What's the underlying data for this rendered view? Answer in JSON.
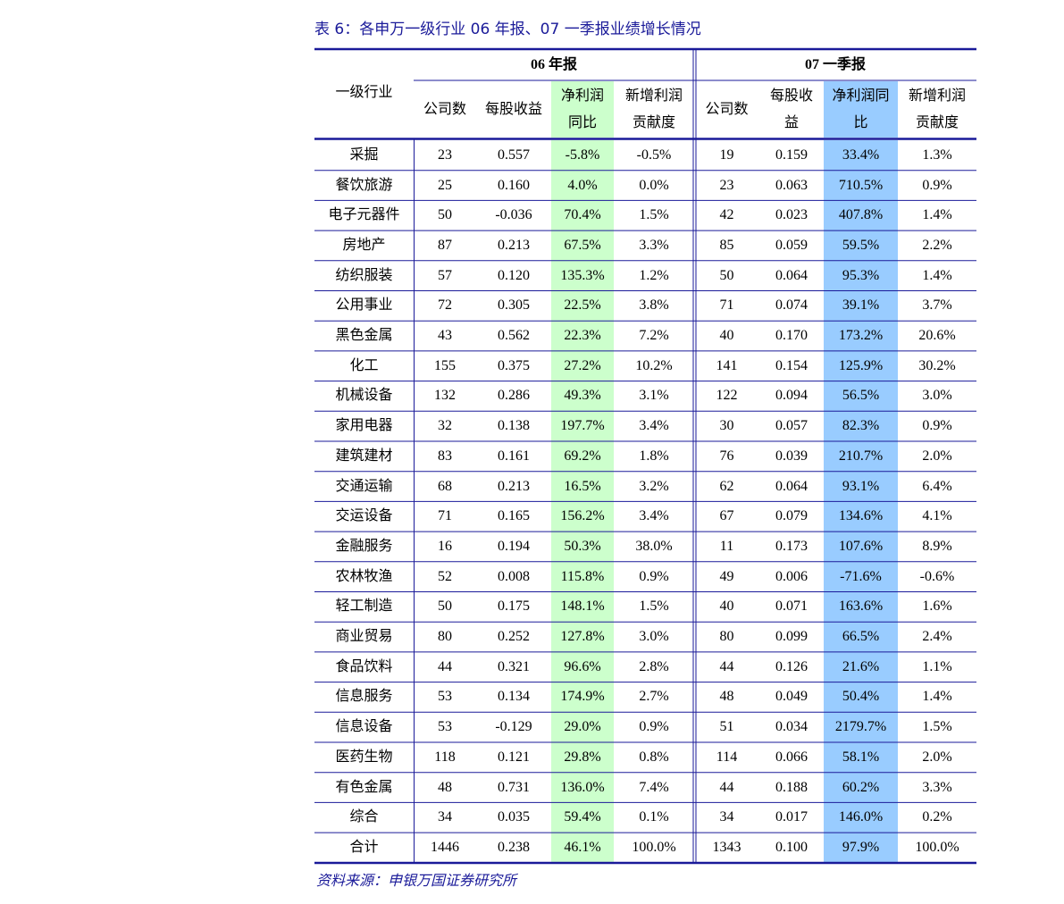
{
  "title": "表 6：各申万一级行业 06 年报、07 一季报业绩增长情况",
  "header": {
    "row_label": "一级行业",
    "groups": [
      "06 年报",
      "07 一季报"
    ],
    "columns": [
      [
        "公司数"
      ],
      [
        "每股收益"
      ],
      [
        "净利润",
        "同比"
      ],
      [
        "新增利润",
        "贡献度"
      ],
      [
        "公司数"
      ],
      [
        "每股收",
        "益"
      ],
      [
        "净利润同",
        "比"
      ],
      [
        "新增利润",
        "贡献度"
      ]
    ]
  },
  "table": {
    "rows": [
      [
        "采掘",
        "23",
        "0.557",
        "-5.8%",
        "-0.5%",
        "19",
        "0.159",
        "33.4%",
        "1.3%"
      ],
      [
        "餐饮旅游",
        "25",
        "0.160",
        "4.0%",
        "0.0%",
        "23",
        "0.063",
        "710.5%",
        "0.9%"
      ],
      [
        "电子元器件",
        "50",
        "-0.036",
        "70.4%",
        "1.5%",
        "42",
        "0.023",
        "407.8%",
        "1.4%"
      ],
      [
        "房地产",
        "87",
        "0.213",
        "67.5%",
        "3.3%",
        "85",
        "0.059",
        "59.5%",
        "2.2%"
      ],
      [
        "纺织服装",
        "57",
        "0.120",
        "135.3%",
        "1.2%",
        "50",
        "0.064",
        "95.3%",
        "1.4%"
      ],
      [
        "公用事业",
        "72",
        "0.305",
        "22.5%",
        "3.8%",
        "71",
        "0.074",
        "39.1%",
        "3.7%"
      ],
      [
        "黑色金属",
        "43",
        "0.562",
        "22.3%",
        "7.2%",
        "40",
        "0.170",
        "173.2%",
        "20.6%"
      ],
      [
        "化工",
        "155",
        "0.375",
        "27.2%",
        "10.2%",
        "141",
        "0.154",
        "125.9%",
        "30.2%"
      ],
      [
        "机械设备",
        "132",
        "0.286",
        "49.3%",
        "3.1%",
        "122",
        "0.094",
        "56.5%",
        "3.0%"
      ],
      [
        "家用电器",
        "32",
        "0.138",
        "197.7%",
        "3.4%",
        "30",
        "0.057",
        "82.3%",
        "0.9%"
      ],
      [
        "建筑建材",
        "83",
        "0.161",
        "69.2%",
        "1.8%",
        "76",
        "0.039",
        "210.7%",
        "2.0%"
      ],
      [
        "交通运输",
        "68",
        "0.213",
        "16.5%",
        "3.2%",
        "62",
        "0.064",
        "93.1%",
        "6.4%"
      ],
      [
        "交运设备",
        "71",
        "0.165",
        "156.2%",
        "3.4%",
        "67",
        "0.079",
        "134.6%",
        "4.1%"
      ],
      [
        "金融服务",
        "16",
        "0.194",
        "50.3%",
        "38.0%",
        "11",
        "0.173",
        "107.6%",
        "8.9%"
      ],
      [
        "农林牧渔",
        "52",
        "0.008",
        "115.8%",
        "0.9%",
        "49",
        "0.006",
        "-71.6%",
        "-0.6%"
      ],
      [
        "轻工制造",
        "50",
        "0.175",
        "148.1%",
        "1.5%",
        "40",
        "0.071",
        "163.6%",
        "1.6%"
      ],
      [
        "商业贸易",
        "80",
        "0.252",
        "127.8%",
        "3.0%",
        "80",
        "0.099",
        "66.5%",
        "2.4%"
      ],
      [
        "食品饮料",
        "44",
        "0.321",
        "96.6%",
        "2.8%",
        "44",
        "0.126",
        "21.6%",
        "1.1%"
      ],
      [
        "信息服务",
        "53",
        "0.134",
        "174.9%",
        "2.7%",
        "48",
        "0.049",
        "50.4%",
        "1.4%"
      ],
      [
        "信息设备",
        "53",
        "-0.129",
        "29.0%",
        "0.9%",
        "51",
        "0.034",
        "2179.7%",
        "1.5%"
      ],
      [
        "医药生物",
        "118",
        "0.121",
        "29.8%",
        "0.8%",
        "114",
        "0.066",
        "58.1%",
        "2.0%"
      ],
      [
        "有色金属",
        "48",
        "0.731",
        "136.0%",
        "7.4%",
        "44",
        "0.188",
        "60.2%",
        "3.3%"
      ],
      [
        "综合",
        "34",
        "0.035",
        "59.4%",
        "0.1%",
        "34",
        "0.017",
        "146.0%",
        "0.2%"
      ],
      [
        "合计",
        "1446",
        "0.238",
        "46.1%",
        "100.0%",
        "1343",
        "0.100",
        "97.9%",
        "100.0%"
      ]
    ]
  },
  "source": "资料来源：申银万国证券研究所"
}
